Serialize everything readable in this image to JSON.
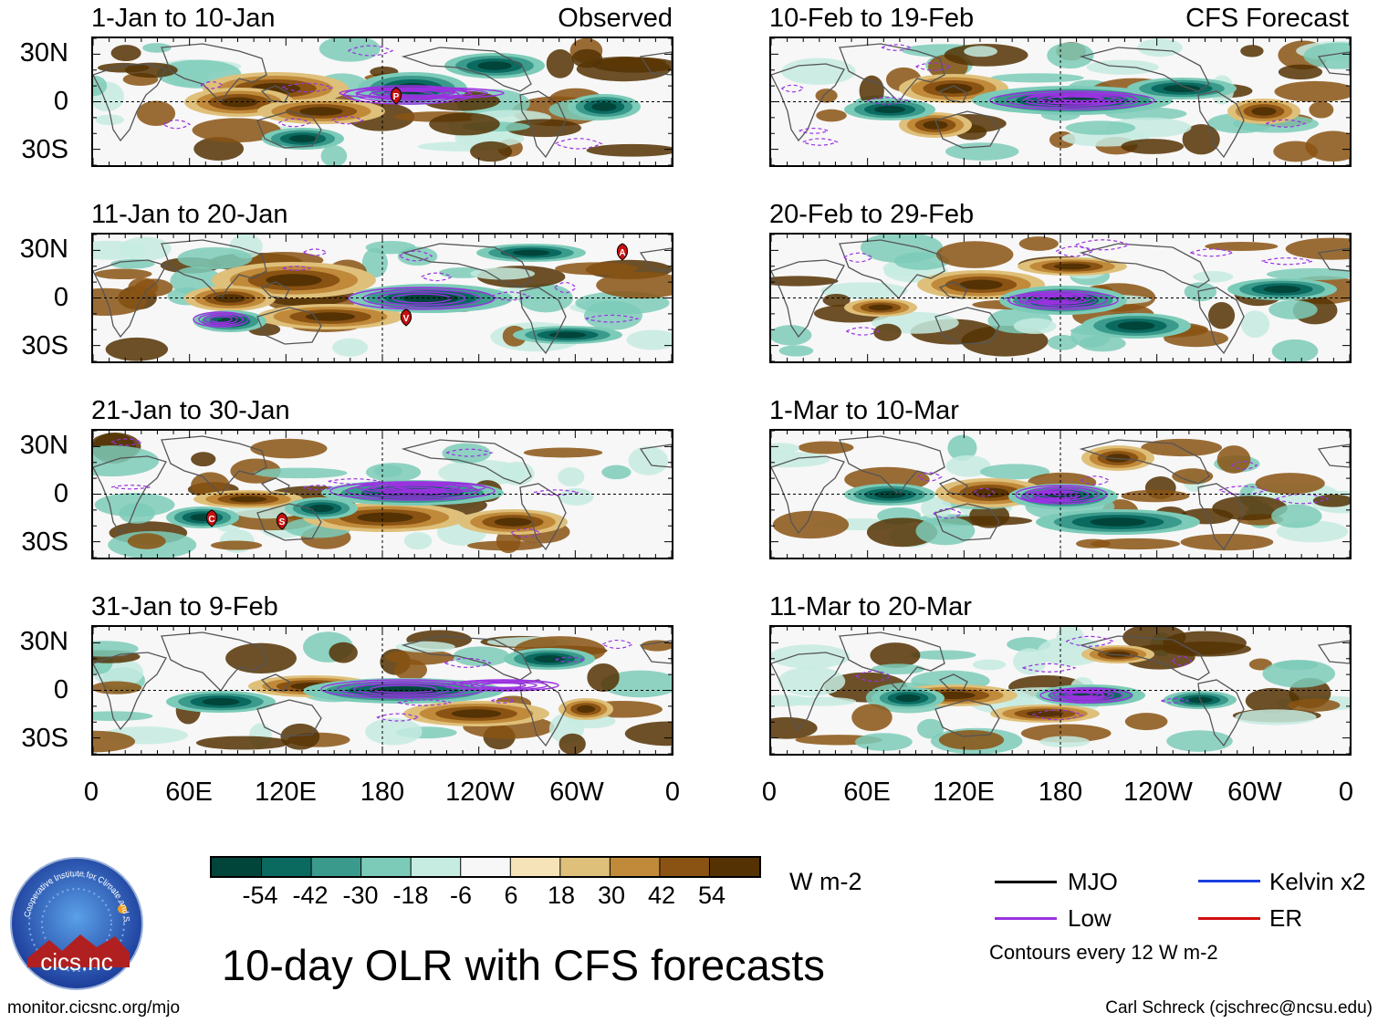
{
  "figure": {
    "title": "10-day OLR with CFS forecasts",
    "left_column_label": "Observed",
    "right_column_label": "CFS Forecast",
    "url": "monitor.cicsnc.org/mjo",
    "credit": "Carl Schreck (cjschrec@ncsu.edu)",
    "logo_name": "Cooperative Institute for Climate and Satellites",
    "logo_text": "cics.nc"
  },
  "panels": {
    "left": [
      {
        "title": "1-Jan to 10-Jan"
      },
      {
        "title": "11-Jan to 20-Jan"
      },
      {
        "title": "21-Jan to 30-Jan"
      },
      {
        "title": "31-Jan to 9-Feb"
      }
    ],
    "right": [
      {
        "title": "10-Feb to 19-Feb"
      },
      {
        "title": "20-Feb to 29-Feb"
      },
      {
        "title": "1-Mar to 10-Mar"
      },
      {
        "title": "11-Mar to 20-Mar"
      }
    ]
  },
  "axes": {
    "y_ticks": [
      "30N",
      "0",
      "30S"
    ],
    "x_ticks": [
      "0",
      "60E",
      "120E",
      "180",
      "120W",
      "60W",
      "0"
    ]
  },
  "storm_markers": [
    {
      "panel": "1-Jan to 10-Jan",
      "letter": "P"
    },
    {
      "panel": "11-Jan to 20-Jan",
      "letter": "A"
    },
    {
      "panel": "11-Jan to 20-Jan",
      "letter": "V"
    },
    {
      "panel": "21-Jan to 30-Jan",
      "letter": "C"
    },
    {
      "panel": "21-Jan to 30-Jan",
      "letter": "S"
    }
  ],
  "colorbar": {
    "unit": "W m-2",
    "ticks": [
      "-54",
      "-42",
      "-30",
      "-18",
      "-6",
      "6",
      "18",
      "30",
      "42",
      "54"
    ],
    "colors": [
      "#00443a",
      "#0a6a60",
      "#3a9a8c",
      "#7ccbb8",
      "#c6ebe0",
      "#f7f7f7",
      "#f6e3b8",
      "#dfc07a",
      "#c08a3a",
      "#8a5313",
      "#553204"
    ]
  },
  "legend": {
    "items": [
      {
        "label": "MJO",
        "color": "#000000"
      },
      {
        "label": "Kelvin x2",
        "color": "#1a3fe0"
      },
      {
        "label": "Low",
        "color": "#9a32e0"
      },
      {
        "label": "ER",
        "color": "#d01010"
      }
    ],
    "note": "Contours every 12 W m-2"
  }
}
